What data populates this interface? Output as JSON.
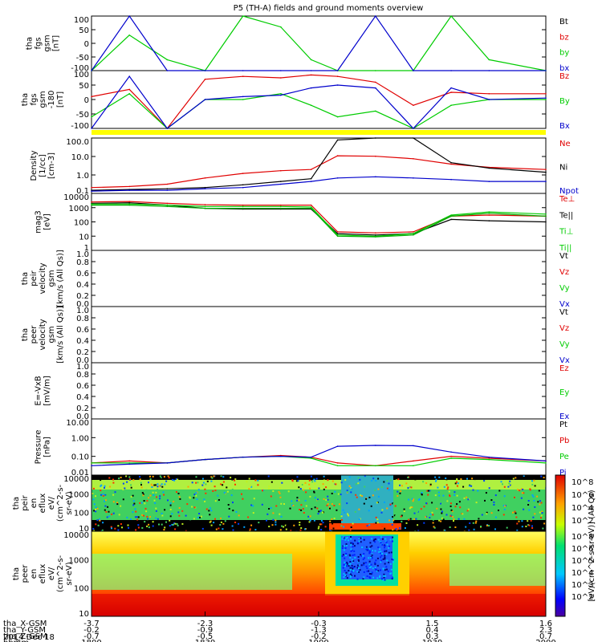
{
  "title": "P5 (TH-A) fields and ground moments overview",
  "colors": {
    "red": "#e00000",
    "green": "#00cc00",
    "blue": "#0000cc",
    "black": "#000000",
    "yellow": "#ffff00"
  },
  "panels": [
    {
      "id": "fgs",
      "ylabel": [
        "tha",
        "fgs",
        "gsm",
        "[nT]"
      ],
      "ticks": [
        "100",
        "50",
        "0",
        "-50",
        "-100"
      ],
      "legend": [
        {
          "text": "Bt",
          "color": "#000000"
        },
        {
          "text": "bz",
          "color": "#e00000"
        },
        {
          "text": "by",
          "color": "#00cc00"
        },
        {
          "text": "bx",
          "color": "#0000cc"
        }
      ]
    },
    {
      "id": "fgs-clip",
      "ylabel": [
        "tha",
        "fgs",
        "gsm",
        "-180",
        "[nT]"
      ],
      "ticks": [
        "100",
        "50",
        "0",
        "-50",
        "-100"
      ],
      "legend": [
        {
          "text": "Bz",
          "color": "#e00000"
        },
        {
          "text": "By",
          "color": "#00cc00"
        },
        {
          "text": "Bx",
          "color": "#0000cc"
        }
      ]
    },
    {
      "id": "density",
      "ylabel": [
        "Density",
        "[1/cc]",
        "[cm-3]"
      ],
      "ticks": [
        "100.0",
        "10.0",
        "1.0",
        "0.1"
      ],
      "legend": [
        {
          "text": "Ne",
          "color": "#e00000"
        },
        {
          "text": "Ni",
          "color": "#000000"
        },
        {
          "text": "Npot",
          "color": "#0000cc"
        }
      ]
    },
    {
      "id": "temp",
      "ylabel": [
        "mag3",
        "[eV]"
      ],
      "ticks": [
        "10000",
        "1000",
        "100",
        "10",
        "1"
      ],
      "legend": [
        {
          "text": "Te⊥",
          "color": "#e00000"
        },
        {
          "text": "Te||",
          "color": "#000000"
        },
        {
          "text": "Ti⊥",
          "color": "#00cc00"
        },
        {
          "text": "Ti||",
          "color": "#00cc00"
        }
      ]
    },
    {
      "id": "peir-vel",
      "ylabel": [
        "tha",
        "peir",
        "velocity",
        "gsm",
        "[km/s (All Qs)]"
      ],
      "ticks": [
        "1.0",
        "0.8",
        "0.6",
        "0.4",
        "0.2",
        "0.0"
      ],
      "legend": [
        {
          "text": "Vt",
          "color": "#000000"
        },
        {
          "text": "Vz",
          "color": "#e00000"
        },
        {
          "text": "Vy",
          "color": "#00cc00"
        },
        {
          "text": "Vx",
          "color": "#0000cc"
        }
      ]
    },
    {
      "id": "peer-vel",
      "ylabel": [
        "tha",
        "peer",
        "velocity",
        "gsm",
        "[km/s (All Qs)]"
      ],
      "ticks": [
        "1.0",
        "0.8",
        "0.6",
        "0.4",
        "0.2",
        "0.0"
      ],
      "legend": [
        {
          "text": "Vt",
          "color": "#000000"
        },
        {
          "text": "Vz",
          "color": "#e00000"
        },
        {
          "text": "Vy",
          "color": "#00cc00"
        },
        {
          "text": "Vx",
          "color": "#0000cc"
        }
      ]
    },
    {
      "id": "efield",
      "ylabel": [
        "E=-VxB",
        "[mV/m]"
      ],
      "ticks": [
        "1.0",
        "0.8",
        "0.6",
        "0.4",
        "0.2",
        "0.0"
      ],
      "legend": [
        {
          "text": "Ez",
          "color": "#e00000"
        },
        {
          "text": "Ey",
          "color": "#00cc00"
        },
        {
          "text": "Ex",
          "color": "#0000cc"
        }
      ]
    },
    {
      "id": "pressure",
      "ylabel": [
        "Pressure",
        "[nPa]"
      ],
      "ticks": [
        "10.00",
        "1.00",
        "0.10",
        "0.01"
      ],
      "legend": [
        {
          "text": "Pt",
          "color": "#000000"
        },
        {
          "text": "Pb",
          "color": "#e00000"
        },
        {
          "text": "Pe",
          "color": "#00cc00"
        },
        {
          "text": "Pi",
          "color": "#0000cc"
        }
      ]
    },
    {
      "id": "peir-eflux",
      "ylabel": [
        "tha",
        "peir",
        "en",
        "eflux",
        "eV/",
        "(cm^2-s-",
        "sr-eV)"
      ],
      "ticks": [
        "10000",
        "1000",
        "100",
        "10"
      ],
      "legend": []
    },
    {
      "id": "peer-eflux",
      "ylabel": [
        "tha",
        "peer",
        "en",
        "eflux",
        "eV/",
        "(cm^2-s-",
        "sr-eV)"
      ],
      "ticks": [
        "10000",
        "1000",
        "100",
        "10"
      ],
      "legend": []
    }
  ],
  "colorbar": {
    "label": "[eV/(cm^2-s-sr-eV)] (All Qs)",
    "ticks_upper": [
      "10^8",
      "10^6",
      "10^4",
      "10^2"
    ],
    "ticks_lower": [
      "10^8",
      "10^6",
      "10^5",
      "10^4",
      "10^3",
      "10^2"
    ]
  },
  "xaxis": {
    "rows": [
      {
        "name": "tha_X-GSM",
        "values": [
          "-3.7",
          "-2.3",
          "-0.3",
          "1.5",
          "1.6"
        ]
      },
      {
        "name": "tha_Y-GSM",
        "values": [
          "-0.2",
          "-0.9",
          "-1.3",
          "0.4",
          "2.3"
        ]
      },
      {
        "name": "tha_Z-GSM",
        "values": [
          "-0.7",
          "-0.5",
          "-0.2",
          "0.3",
          "0.7"
        ]
      },
      {
        "name": "hhmm",
        "values": [
          "1800",
          "1830",
          "1900",
          "1930",
          "2000"
        ]
      }
    ],
    "date": "2014 Dec 18"
  },
  "chart_data": {
    "type": "line",
    "title": "P5 (TH-A) fields and ground moments overview",
    "x_range": [
      "18:00",
      "20:00"
    ],
    "x": [
      "18:00",
      "18:10",
      "18:20",
      "18:30",
      "18:40",
      "18:50",
      "18:58",
      "19:05",
      "19:15",
      "19:25",
      "19:35",
      "19:45",
      "20:00"
    ],
    "series_panels": [
      {
        "panel": "fgs",
        "yscale": "linear",
        "ylim": [
          -100,
          100
        ],
        "series": [
          {
            "name": "by",
            "values": [
              -100,
              30,
              -60,
              -100,
              100,
              60,
              -60,
              -100,
              -100,
              -100,
              100,
              -60,
              -100
            ]
          },
          {
            "name": "bx",
            "values": [
              -100,
              100,
              -100,
              -100,
              -100,
              -100,
              -100,
              -100,
              100,
              -100,
              -100,
              -100,
              -100
            ]
          }
        ]
      },
      {
        "panel": "fgs-clip",
        "yscale": "linear",
        "ylim": [
          -100,
          100
        ],
        "series": [
          {
            "name": "Bz",
            "values": [
              10,
              35,
              -100,
              70,
              80,
              75,
              85,
              80,
              60,
              -20,
              25,
              20,
              20
            ]
          },
          {
            "name": "By",
            "values": [
              -60,
              20,
              -100,
              0,
              0,
              20,
              -20,
              -60,
              -40,
              -100,
              -20,
              0,
              0
            ]
          },
          {
            "name": "Bx",
            "values": [
              -100,
              80,
              -100,
              0,
              10,
              15,
              40,
              50,
              40,
              -100,
              40,
              0,
              5
            ]
          }
        ]
      },
      {
        "panel": "density",
        "yscale": "log",
        "ylim": [
          0.05,
          200
        ],
        "series": [
          {
            "name": "Ne",
            "values": [
              0.12,
              0.14,
              0.2,
              0.5,
              1.0,
              1.5,
              1.8,
              14,
              13,
              9,
              4,
              2.5,
              1.8
            ]
          },
          {
            "name": "Ni",
            "values": [
              0.08,
              0.09,
              0.1,
              0.12,
              0.18,
              0.3,
              0.45,
              150,
              200,
              200,
              5,
              2.2,
              1.2
            ]
          },
          {
            "name": "Npot",
            "values": [
              0.07,
              0.08,
              0.08,
              0.1,
              0.12,
              0.2,
              0.3,
              0.5,
              0.6,
              0.5,
              0.4,
              0.3,
              0.3
            ]
          }
        ]
      },
      {
        "panel": "temp",
        "yscale": "log",
        "ylim": [
          1,
          10000
        ],
        "series": [
          {
            "name": "Te⊥",
            "values": [
              2500,
              2700,
              2000,
              1600,
              1500,
              1500,
              1500,
              20,
              17,
              20,
              250,
              300,
              250
            ]
          },
          {
            "name": "Te||",
            "values": [
              2000,
              2200,
              1500,
              900,
              800,
              800,
              800,
              15,
              12,
              15,
              150,
              120,
              100
            ]
          },
          {
            "name": "Ti⊥",
            "values": [
              1800,
              1800,
              1500,
              1200,
              1200,
              1200,
              1100,
              12,
              10,
              15,
              300,
              500,
              350
            ]
          },
          {
            "name": "Ti||",
            "values": [
              1500,
              1500,
              1200,
              900,
              900,
              900,
              900,
              10,
              9,
              12,
              250,
              400,
              250
            ]
          }
        ]
      },
      {
        "panel": "pressure",
        "yscale": "log",
        "ylim": [
          0.005,
          20
        ],
        "series": [
          {
            "name": "Pb",
            "values": [
              0.03,
              0.04,
              0.03,
              0.05,
              0.07,
              0.09,
              0.07,
              0.03,
              0.02,
              0.04,
              0.08,
              0.06,
              0.04
            ]
          },
          {
            "name": "Pe",
            "values": [
              0.03,
              0.03,
              0.03,
              0.05,
              0.07,
              0.08,
              0.06,
              0.02,
              0.02,
              0.02,
              0.06,
              0.05,
              0.03
            ]
          },
          {
            "name": "Pi",
            "values": [
              0.02,
              0.025,
              0.03,
              0.05,
              0.07,
              0.08,
              0.07,
              0.35,
              0.4,
              0.38,
              0.15,
              0.07,
              0.04
            ]
          }
        ]
      }
    ],
    "spectrograms": [
      {
        "panel": "peir-eflux",
        "yscale": "log",
        "ylim": [
          5,
          20000
        ]
      },
      {
        "panel": "peer-eflux",
        "yscale": "log",
        "ylim": [
          5,
          20000
        ]
      }
    ]
  }
}
